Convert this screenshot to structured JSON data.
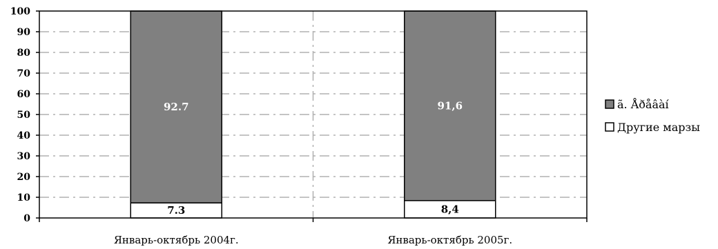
{
  "chart_data": {
    "type": "bar",
    "stacked": true,
    "categories": [
      "Январь-октябрь 2004г.",
      "Январь-октябрь 2005г."
    ],
    "series": [
      {
        "name": "Другие марзы",
        "values": [
          7.3,
          8.4
        ],
        "labels": [
          "7.3",
          "8,4"
        ],
        "color": "#ffffff"
      },
      {
        "name": "ã. Åðåâàí",
        "values": [
          92.7,
          91.6
        ],
        "labels": [
          "92.7",
          "91,6"
        ],
        "color": "#808080"
      }
    ],
    "legend_order": [
      "ã. Åðåâàí",
      "Другие марзы"
    ],
    "ylim": [
      0,
      100
    ],
    "yticks": [
      0,
      10,
      20,
      30,
      40,
      50,
      60,
      70,
      80,
      90,
      100
    ],
    "grid": true,
    "legend_position": "right",
    "title": "",
    "xlabel": "",
    "ylabel": ""
  }
}
